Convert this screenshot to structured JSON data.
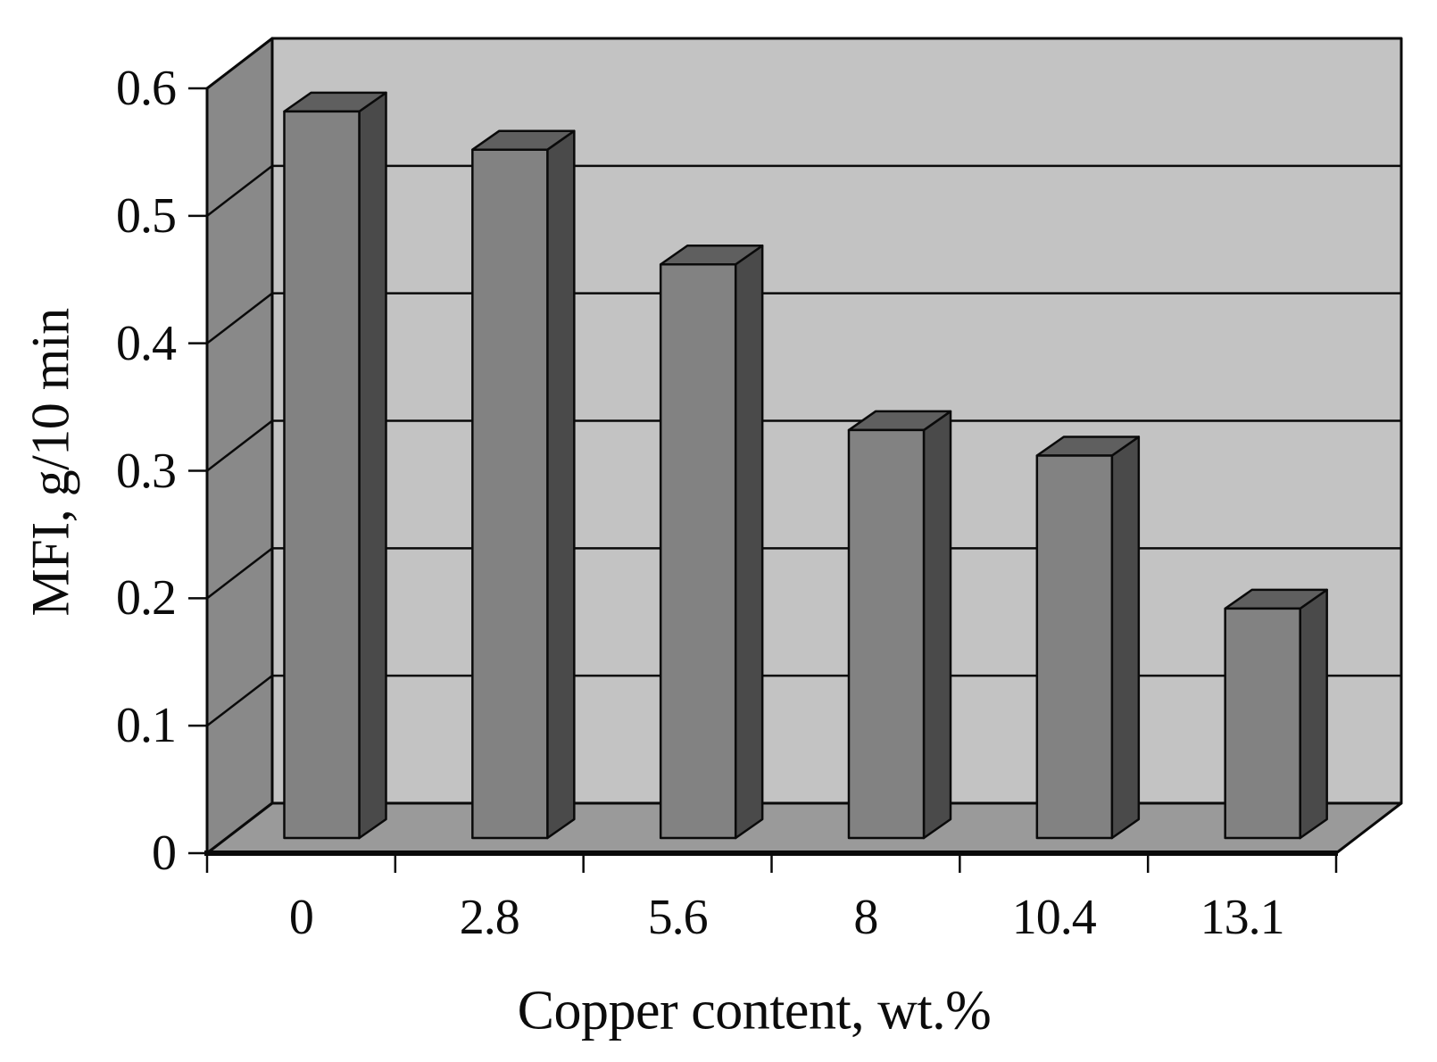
{
  "chart_data": {
    "type": "bar",
    "projection": "3d",
    "title": "",
    "xlabel": "Copper content, wt.%",
    "ylabel": "MFI, g/10 min",
    "categories": [
      "0",
      "2.8",
      "5.6",
      "8",
      "10.4",
      "13.1"
    ],
    "series": [
      {
        "name": "MFI",
        "values": [
          0.57,
          0.54,
          0.45,
          0.32,
          0.3,
          0.18
        ]
      }
    ],
    "values": [
      0.57,
      0.54,
      0.45,
      0.32,
      0.3,
      0.18
    ],
    "ylim": [
      0,
      0.6
    ],
    "ytick_interval": 0.1,
    "ytick_labels": [
      "0",
      "0.1",
      "0.2",
      "0.3",
      "0.4",
      "0.5",
      "0.6"
    ],
    "grid": true,
    "legend": false,
    "colors": {
      "bar_front": "#828282",
      "bar_top": "#5f5f5f",
      "bar_side": "#4a4a4a",
      "wall_left": "#898989",
      "wall_back": "#c3c3c3",
      "floor": "#9a9a9a",
      "outline": "#0a0a0a",
      "background": "#ffffff"
    }
  }
}
